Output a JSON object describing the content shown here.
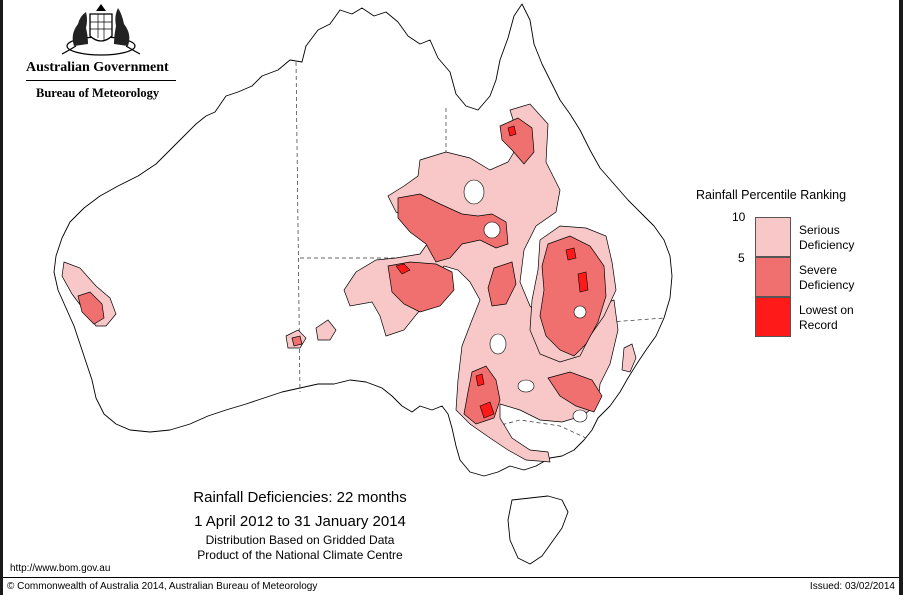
{
  "header": {
    "government": "Australian Government",
    "agency": "Bureau of Meteorology"
  },
  "legend": {
    "title": "Rainfall Percentile Ranking",
    "ticks": [
      "10",
      "5"
    ],
    "categories": [
      {
        "label": "Serious Deficiency",
        "color": "#f8c8c8"
      },
      {
        "label": "Severe Deficiency",
        "color": "#f07070"
      },
      {
        "label": "Lowest on Record",
        "color": "#ff1a1a"
      }
    ]
  },
  "caption": {
    "title": "Rainfall Deficiencies: 22 months",
    "dates": "1 April 2012 to 31 January 2014",
    "line1": "Distribution Based on Gridded Data",
    "line2": "Product of the National Climate Centre"
  },
  "footer": {
    "url": "http://www.bom.gov.au",
    "copyright": "© Commonwealth of Australia 2014, Australian Bureau of Meteorology",
    "issued": "Issued: 03/02/2014"
  },
  "colors": {
    "serious": "#f8c8c8",
    "severe": "#f07070",
    "lowest": "#ff1a1a",
    "outline": "#000000"
  }
}
